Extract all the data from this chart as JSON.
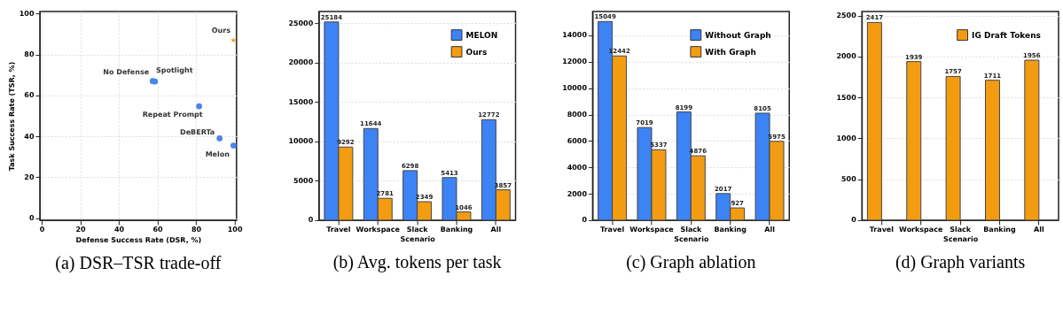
{
  "chart_data": [
    {
      "type": "scatter",
      "title": "(a) DSR–TSR trade-off",
      "xlabel": "Defense Success Rate (DSR, %)",
      "ylabel": "Task Success Rate (TSR, %)",
      "xlim": [
        -1,
        101
      ],
      "ylim": [
        -1,
        101
      ],
      "xticks": [
        0,
        20,
        40,
        60,
        80,
        100
      ],
      "yticks": [
        0,
        20,
        40,
        60,
        80,
        100
      ],
      "grid": true,
      "legend": false,
      "marker": "circle",
      "series": [
        {
          "name": "No Defense",
          "color": "#4a86e8",
          "x": [
            57.5
          ],
          "values": [
            67
          ]
        },
        {
          "name": "Spotlight",
          "color": "#4a86e8",
          "x": [
            58.7
          ],
          "values": [
            66.8
          ]
        },
        {
          "name": "Repeat Prompt",
          "color": "#4a86e8",
          "x": [
            81.6
          ],
          "values": [
            54.7
          ]
        },
        {
          "name": "DeBERTa",
          "color": "#4a86e8",
          "x": [
            92.2
          ],
          "values": [
            39
          ]
        },
        {
          "name": "Melon",
          "color": "#4a86e8",
          "x": [
            99.4
          ],
          "values": [
            35.5
          ]
        },
        {
          "name": "Ours",
          "color": "#f39c12",
          "x": [
            99.4
          ],
          "values": [
            87
          ],
          "marker": "star"
        }
      ]
    },
    {
      "type": "bar",
      "title": "(b) Avg. tokens per task",
      "xlabel": "Scenario",
      "categories": [
        "Travel",
        "Workspace",
        "Slack",
        "Banking",
        "All"
      ],
      "ylim": [
        0,
        26500
      ],
      "yticks": [
        0,
        5000,
        10000,
        15000,
        20000,
        25000
      ],
      "grid": "y",
      "legend": "top right",
      "data_labels": true,
      "series": [
        {
          "name": "MELON",
          "color": "#3c83f6",
          "values": [
            25184,
            11644,
            6298,
            5413,
            12772
          ]
        },
        {
          "name": "Ours",
          "color": "#f39c12",
          "values": [
            9292,
            2781,
            2349,
            1046,
            3857
          ]
        }
      ]
    },
    {
      "type": "bar",
      "title": "(c) Graph ablation",
      "xlabel": "Scenario",
      "categories": [
        "Travel",
        "Workspace",
        "Slack",
        "Banking",
        "All"
      ],
      "ylim": [
        0,
        15800
      ],
      "yticks": [
        0,
        2000,
        4000,
        6000,
        8000,
        10000,
        12000,
        14000
      ],
      "grid": "y",
      "legend": "top right",
      "data_labels": true,
      "series": [
        {
          "name": "Without Graph",
          "color": "#3c83f6",
          "values": [
            15049,
            7019,
            8199,
            2017,
            8105
          ]
        },
        {
          "name": "With Graph",
          "color": "#f39c12",
          "values": [
            12442,
            5337,
            4876,
            927,
            5975
          ]
        }
      ]
    },
    {
      "type": "bar",
      "title": "(d) Graph variants",
      "xlabel": "Scenario",
      "categories": [
        "Travel",
        "Workspace",
        "Slack",
        "Banking",
        "All"
      ],
      "ylim": [
        0,
        2550
      ],
      "yticks": [
        0,
        500,
        1000,
        1500,
        2000,
        2500
      ],
      "grid": "y",
      "legend": "top right",
      "data_labels": true,
      "series": [
        {
          "name": "IG Draft Tokens",
          "color": "#f39c12",
          "values": [
            2417,
            1939,
            1757,
            1711,
            1956
          ]
        }
      ]
    }
  ]
}
